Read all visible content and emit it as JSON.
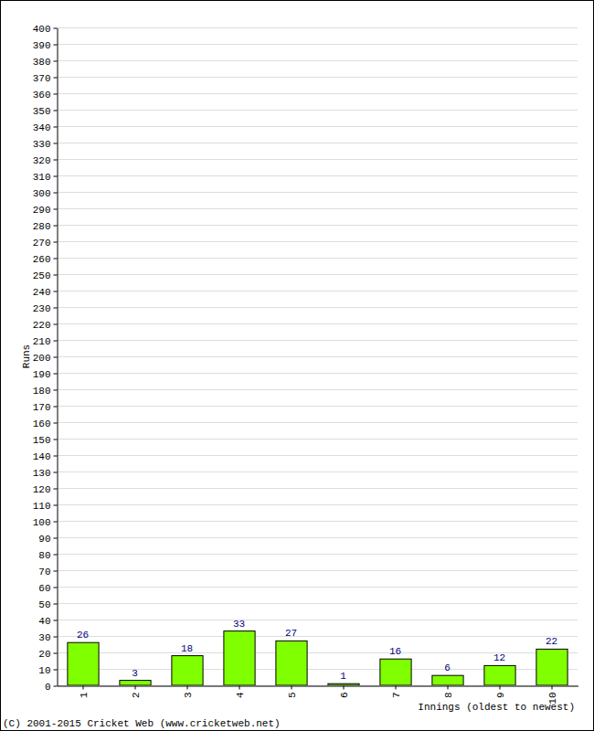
{
  "chart_data": {
    "type": "bar",
    "categories": [
      "1",
      "2",
      "3",
      "4",
      "5",
      "6",
      "7",
      "8",
      "9",
      "10"
    ],
    "values": [
      26,
      3,
      18,
      33,
      27,
      1,
      16,
      6,
      12,
      22
    ],
    "color": "#80ff00",
    "ylim": [
      0,
      400
    ],
    "yticks": [
      0,
      10,
      20,
      30,
      40,
      50,
      60,
      70,
      80,
      90,
      100,
      110,
      120,
      130,
      140,
      150,
      160,
      170,
      180,
      190,
      200,
      210,
      220,
      230,
      240,
      250,
      260,
      270,
      280,
      290,
      300,
      310,
      320,
      330,
      340,
      350,
      360,
      370,
      380,
      390,
      400
    ],
    "grid": true,
    "data_labels": true,
    "y_label": "Runs",
    "x_label": "Innings (oldest to newest)",
    "annotations": [
      "(C) 2001-2015 Cricket Web (www.cricketweb.net)"
    ]
  }
}
